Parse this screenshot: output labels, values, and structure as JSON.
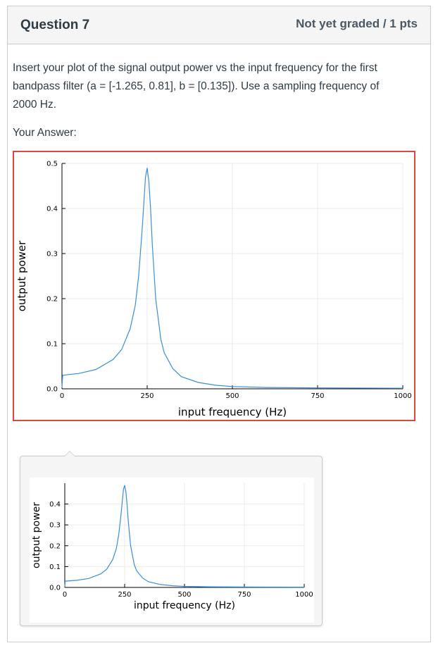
{
  "question": {
    "title": "Question 7",
    "grade_status": "Not yet graded / 1 pts",
    "text_line1": "Insert your plot of the signal output power vs the input frequency for the first",
    "text_line2": "bandpass filter (a = [-1.265, 0.81], b = [0.135]).  Use a sampling frequency of",
    "text_line3": "2000 Hz.",
    "your_answer_label": "Your Answer:"
  },
  "colors": {
    "accent_border": "#d9493c",
    "series_line": "#3a8fdc"
  },
  "chart_data": [
    {
      "type": "line",
      "xlabel": "input frequency (Hz)",
      "ylabel": "output power",
      "xlim": [
        0,
        1000
      ],
      "ylim": [
        0,
        0.5
      ],
      "xticks": [
        0,
        250,
        500,
        750,
        1000
      ],
      "yticks": [
        0.0,
        0.1,
        0.2,
        0.3,
        0.4,
        0.5
      ],
      "ytick_labels": [
        "0.0",
        "0.1",
        "0.2",
        "0.3",
        "0.4",
        "0.5"
      ],
      "grid": true,
      "series": [
        {
          "x": [
            0,
            2,
            50,
            100,
            150,
            175,
            200,
            215,
            225,
            235,
            240,
            245,
            250,
            255,
            260,
            265,
            275,
            290,
            300,
            325,
            350,
            400,
            450,
            500,
            600,
            750,
            1000
          ],
          "values": [
            0.003,
            0.03,
            0.034,
            0.043,
            0.065,
            0.087,
            0.133,
            0.185,
            0.25,
            0.35,
            0.41,
            0.47,
            0.49,
            0.46,
            0.4,
            0.32,
            0.2,
            0.11,
            0.08,
            0.045,
            0.027,
            0.014,
            0.008,
            0.005,
            0.003,
            0.002,
            0.0012
          ]
        }
      ]
    },
    {
      "type": "line",
      "xlabel": "input frequency (Hz)",
      "ylabel": "output power",
      "xlim": [
        0,
        1000
      ],
      "ylim": [
        0,
        0.5
      ],
      "xticks": [
        0,
        250,
        500,
        750,
        1000
      ],
      "yticks": [
        0.0,
        0.1,
        0.2,
        0.3,
        0.4
      ],
      "ytick_labels": [
        "0.0",
        "0.1",
        "0.2",
        "0.3",
        "0.4"
      ],
      "grid": true,
      "series": [
        {
          "x": [
            0,
            2,
            50,
            100,
            150,
            175,
            200,
            215,
            225,
            235,
            240,
            245,
            250,
            255,
            260,
            265,
            275,
            290,
            300,
            325,
            350,
            400,
            450,
            500,
            600,
            750,
            1000
          ],
          "values": [
            0.003,
            0.03,
            0.034,
            0.043,
            0.065,
            0.087,
            0.133,
            0.185,
            0.25,
            0.35,
            0.41,
            0.47,
            0.49,
            0.46,
            0.4,
            0.32,
            0.2,
            0.11,
            0.08,
            0.045,
            0.027,
            0.014,
            0.008,
            0.005,
            0.003,
            0.002,
            0.0012
          ]
        }
      ]
    }
  ]
}
